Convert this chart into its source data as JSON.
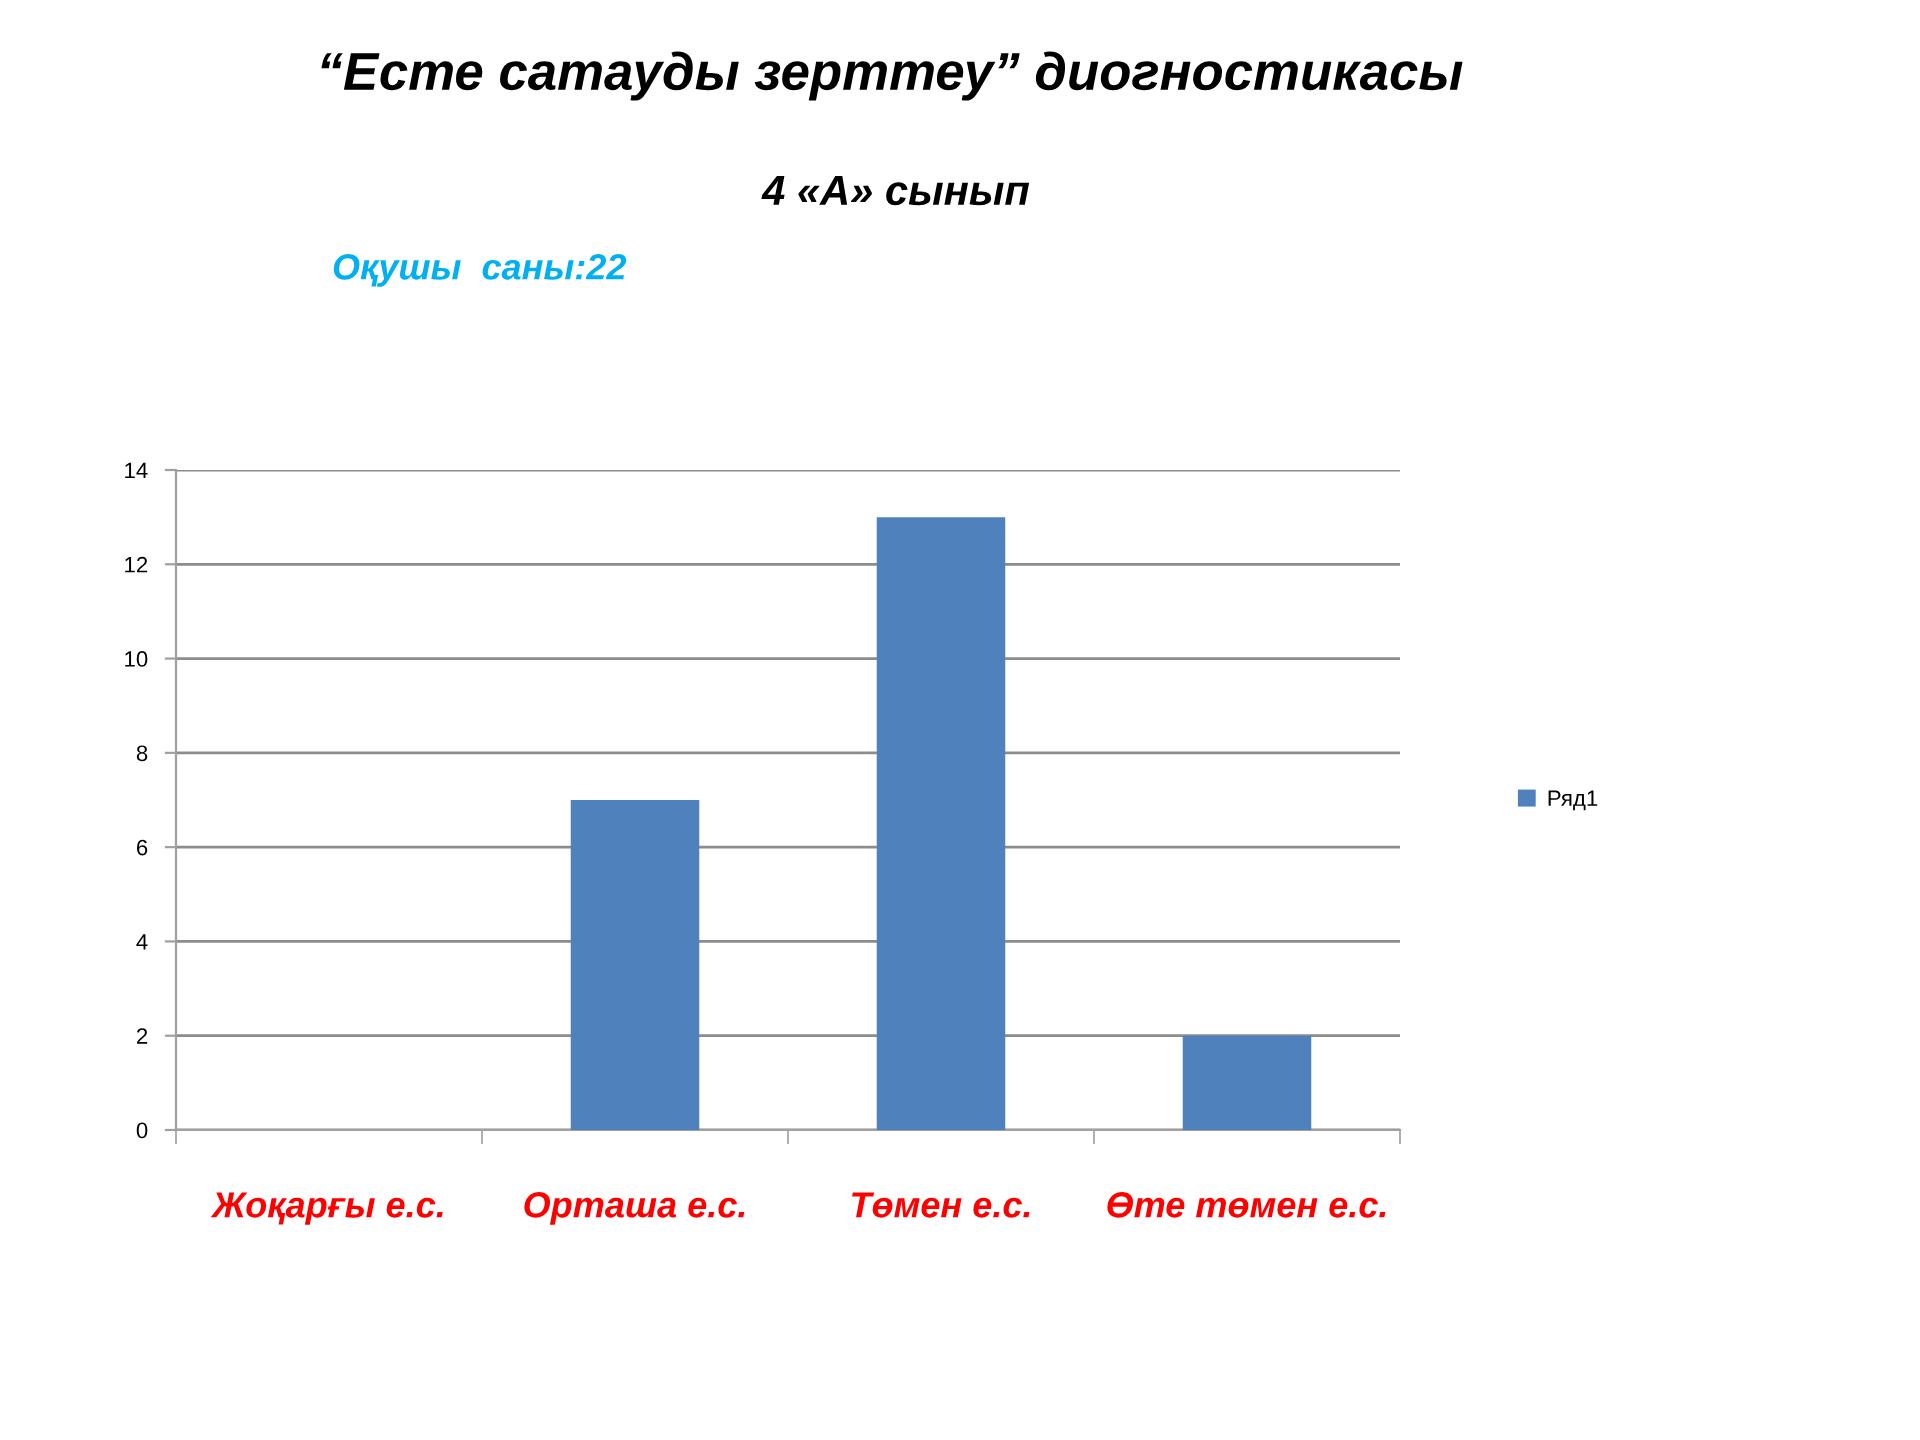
{
  "chart_data": {
    "type": "bar",
    "title": "“Есте сатауды зерттеу” диогностикасы",
    "subtitle": "4 «А» сынып",
    "annotations": [
      "Оқушы  саны:22"
    ],
    "categories": [
      "Жоқарғы е.с.",
      "Орташа е.с.",
      "Төмен е.с.",
      "Өте төмен е.с."
    ],
    "series": [
      {
        "name": "Ряд1",
        "color": "#4f81bd",
        "values": [
          0,
          7,
          13,
          2
        ]
      }
    ],
    "ylim": [
      0,
      14
    ],
    "yticks": [
      0,
      2,
      4,
      6,
      8,
      10,
      12,
      14
    ],
    "grid": "y",
    "legend": "right"
  }
}
